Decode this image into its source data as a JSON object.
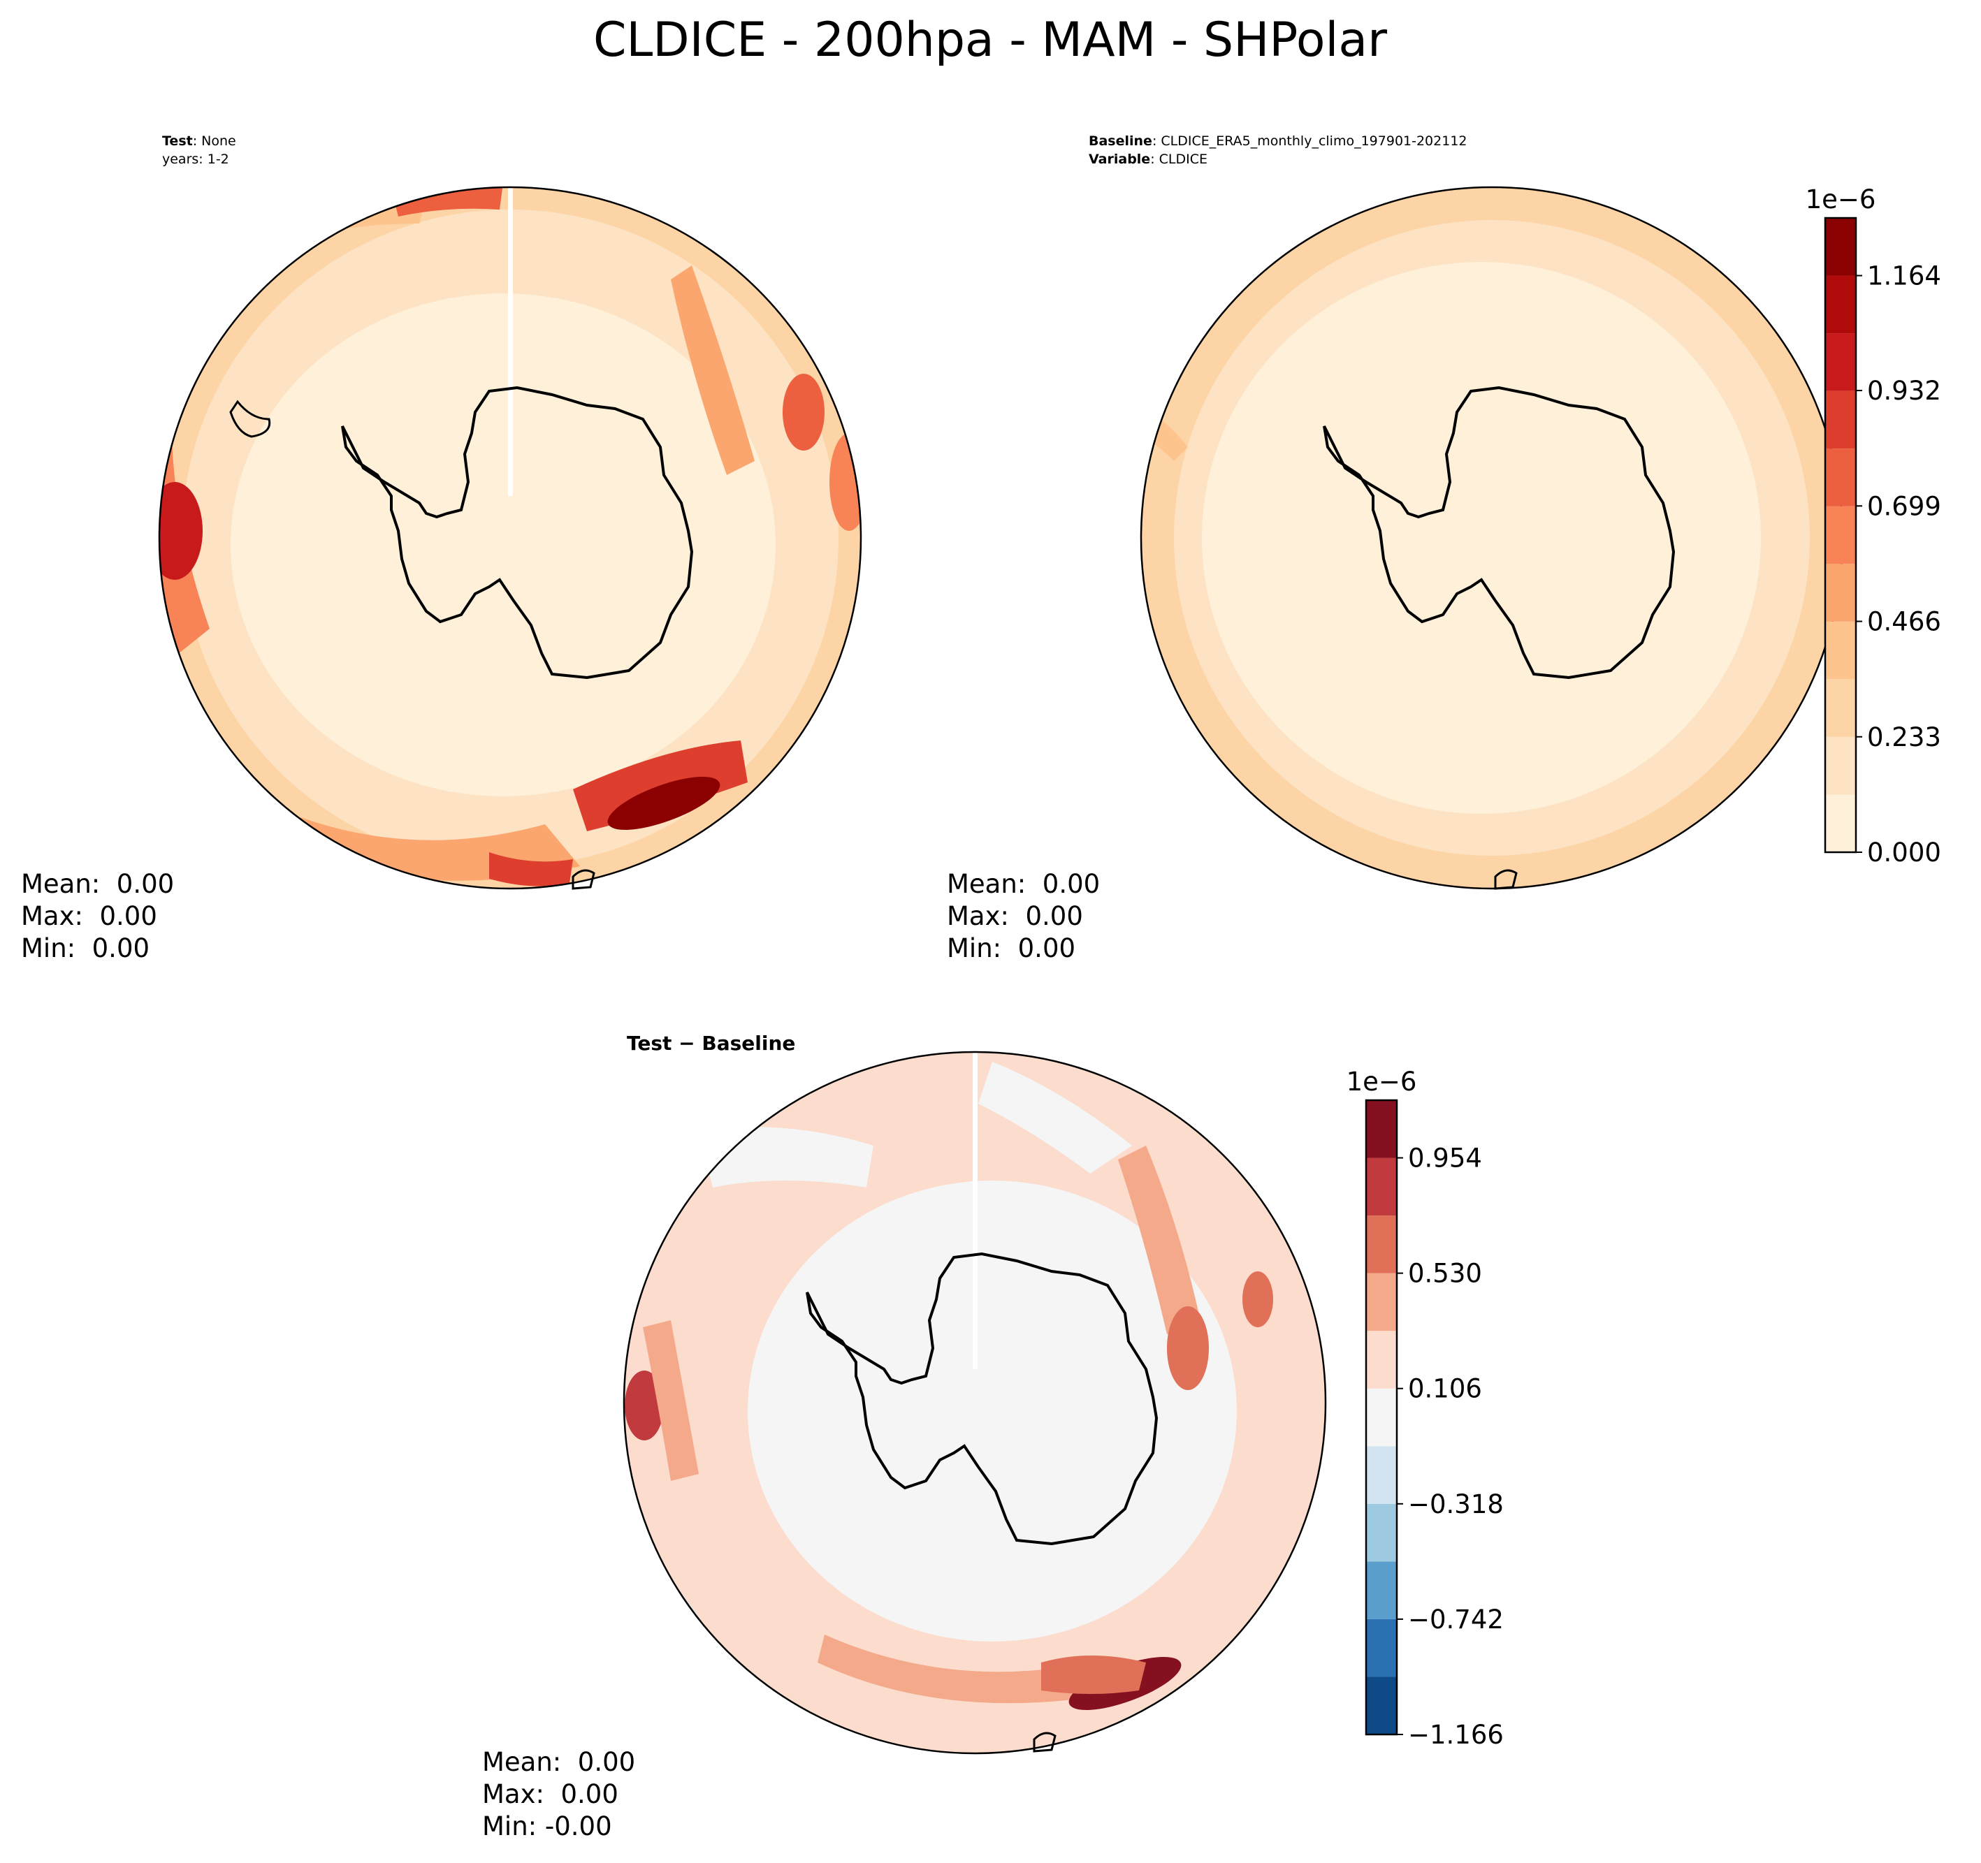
{
  "title": "CLDICE - 200hpa - MAM - SHPolar",
  "chart_data": [
    {
      "type": "heatmap",
      "panel": "test",
      "header": [
        {
          "bold": "Test",
          "text": ": None"
        },
        {
          "bold": "",
          "text": "years: 1-2"
        }
      ],
      "stats": [
        "Mean:  0.00",
        "Max:  0.00",
        "Min:  0.00"
      ],
      "projection": "south-polar stereographic",
      "colormap": "OrRd",
      "description_of_field": "Values mostly 0.0-0.35e-6 over Antarctica; higher (0.5-1.3e-6) near outer latitudes, peak ~1.2e-6 in a band at lower-right"
    },
    {
      "type": "heatmap",
      "panel": "baseline",
      "header": [
        {
          "bold": "Baseline",
          "text": ": CLDICE_ERA5_monthly_climo_197901-202112"
        },
        {
          "bold": "Variable",
          "text": ": CLDICE"
        }
      ],
      "stats": [
        "Mean:  0.00",
        "Max:  0.00",
        "Min:  0.00"
      ],
      "projection": "south-polar stereographic",
      "colormap": "OrRd",
      "colorbar": {
        "exponent_label": "1e−6",
        "tick_labels": [
          "0.000",
          "0.233",
          "0.466",
          "0.699",
          "0.932",
          "1.164"
        ],
        "tick_values": [
          0.0,
          0.233,
          0.466,
          0.699,
          0.932,
          1.164
        ],
        "levels": [
          0.0,
          0.1164,
          0.2328,
          0.3492,
          0.4656,
          0.582,
          0.6984,
          0.8148,
          0.9312,
          1.0476,
          1.164,
          1.2804
        ],
        "colors": [
          "#fef0d9",
          "#fde3c3",
          "#fdd4a6",
          "#fdc48d",
          "#fca66f",
          "#f88356",
          "#ec6040",
          "#dd3e2e",
          "#c81a1a",
          "#b10a0a",
          "#8b0000"
        ]
      },
      "description_of_field": "Nearly uniform 0.0-0.35e-6, lightest interior"
    },
    {
      "type": "heatmap",
      "panel": "difference",
      "header": [
        {
          "bold": "Test − Baseline",
          "text": ""
        }
      ],
      "stats": [
        "Mean:  0.00",
        "Max:  0.00",
        "Min: -0.00"
      ],
      "projection": "south-polar stereographic",
      "colormap": "RdBu_r",
      "colorbar": {
        "exponent_label": "1e−6",
        "tick_labels": [
          "−1.166",
          "−0.742",
          "−0.318",
          "0.106",
          "0.530",
          "0.954"
        ],
        "tick_values": [
          -1.166,
          -0.742,
          -0.318,
          0.106,
          0.53,
          0.954
        ],
        "levels": [
          -1.166,
          -0.954,
          -0.742,
          -0.53,
          -0.318,
          -0.106,
          0.106,
          0.318,
          0.53,
          0.742,
          0.954,
          1.166
        ],
        "colors": [
          "#0d4a87",
          "#2a71b2",
          "#5a9ecd",
          "#9ecae1",
          "#d1e4f0",
          "#f5f5f5",
          "#fbdccd",
          "#f3a98a",
          "#e07158",
          "#c13a3e",
          "#85101f"
        ]
      },
      "description_of_field": "Mostly near zero over interior; positive differences 0.1-1.1e-6 near outer latitudes"
    }
  ],
  "colors": {
    "land_outline": "#000000",
    "background": "#ffffff"
  }
}
